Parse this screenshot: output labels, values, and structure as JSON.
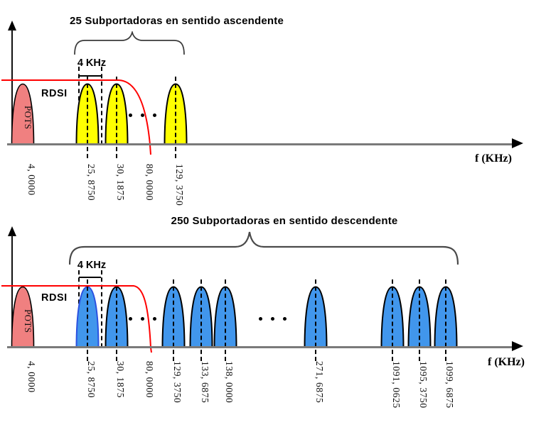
{
  "charts": {
    "upstream": {
      "title": "25 Subportadoras en sentido ascendente",
      "band_label": "4 KHz",
      "rdsi_label": "RDSI",
      "pots_label": "POTS",
      "pots_freq_label": "4, 0000",
      "cutoff_label": "80, 0000",
      "axis_label": "f (KHz)",
      "carrier_labels": [
        "25, 8750",
        "30, 1875",
        "129, 3750"
      ]
    },
    "downstream": {
      "title": "250 Subportadoras en sentido descendente",
      "band_label": "4 KHz",
      "rdsi_label": "RDSI",
      "pots_label": "POTS",
      "pots_freq_label": "4, 0000",
      "cutoff_label": "80, 0000",
      "axis_label": "f (KHz)",
      "carrier_labels": [
        "25, 8750",
        "30, 1875",
        "129, 3750",
        "133, 6875",
        "138, 0000",
        "271, 6875",
        "1091, 0625",
        "1095, 3750",
        "1099, 6875"
      ]
    }
  },
  "colors": {
    "pots_fill": "#F08080",
    "upstream_carrier_fill": "#FFFF00",
    "downstream_carrier_fill": "#4196EC",
    "downstream_first_outline": "#2B51E0",
    "carrier_outline": "#000000",
    "spectral_mask": "#FF0000",
    "axis_gray": "#7A7A7A"
  },
  "chart_data": [
    {
      "type": "area",
      "title": "25 Subportadoras en sentido ascendente",
      "xlabel": "f (KHz)",
      "direction": "ascendente",
      "num_subcarriers": 25,
      "subcarrier_spacing_label": "4 KHz",
      "pots_marker_khz": 4.0,
      "carrier_markers_khz": [
        25.875,
        30.1875,
        129.375
      ],
      "mask_cutoff_khz": 80.0,
      "annotations": [
        "RDSI",
        "POTS"
      ]
    },
    {
      "type": "area",
      "title": "250 Subportadoras en sentido descendente",
      "xlabel": "f (KHz)",
      "direction": "descendente",
      "num_subcarriers": 250,
      "subcarrier_spacing_label": "4 KHz",
      "pots_marker_khz": 4.0,
      "carrier_markers_khz": [
        25.875,
        30.1875,
        129.375,
        133.6875,
        138.0,
        271.6875,
        1091.0625,
        1095.375,
        1099.6875
      ],
      "mask_cutoff_khz": 80.0,
      "annotations": [
        "RDSI",
        "POTS"
      ]
    }
  ]
}
